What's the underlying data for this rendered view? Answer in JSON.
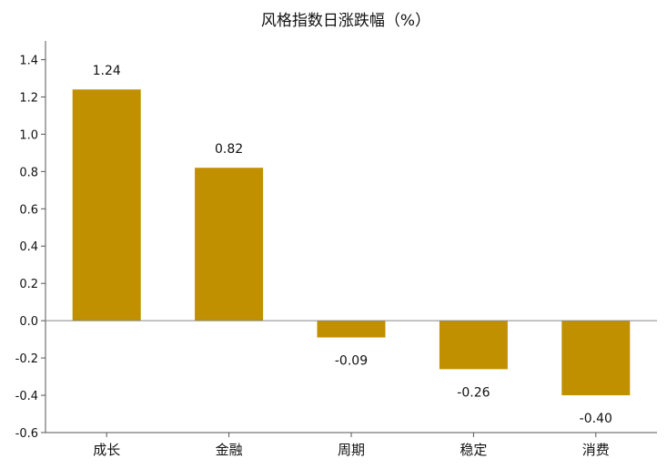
{
  "chart_data": {
    "type": "bar",
    "title": "风格指数日涨跌幅（%）",
    "xlabel": "",
    "ylabel": "",
    "categories": [
      "成长",
      "金融",
      "周期",
      "稳定",
      "消费"
    ],
    "values": [
      1.24,
      0.82,
      -0.09,
      -0.26,
      -0.4
    ],
    "data_labels": [
      "1.24",
      "0.82",
      "-0.09",
      "-0.26",
      "-0.40"
    ],
    "ylim": [
      -0.6,
      1.5
    ],
    "yticks": [
      -0.6,
      -0.4,
      -0.2,
      0.0,
      0.2,
      0.4,
      0.6,
      0.8,
      1.0,
      1.2,
      1.4
    ],
    "ytick_labels": [
      "-0.6",
      "-0.4",
      "-0.2",
      "0.0",
      "0.2",
      "0.4",
      "0.6",
      "0.8",
      "1.0",
      "1.2",
      "1.4"
    ],
    "bar_color": "#C09000",
    "grid": false,
    "legend": "none"
  }
}
